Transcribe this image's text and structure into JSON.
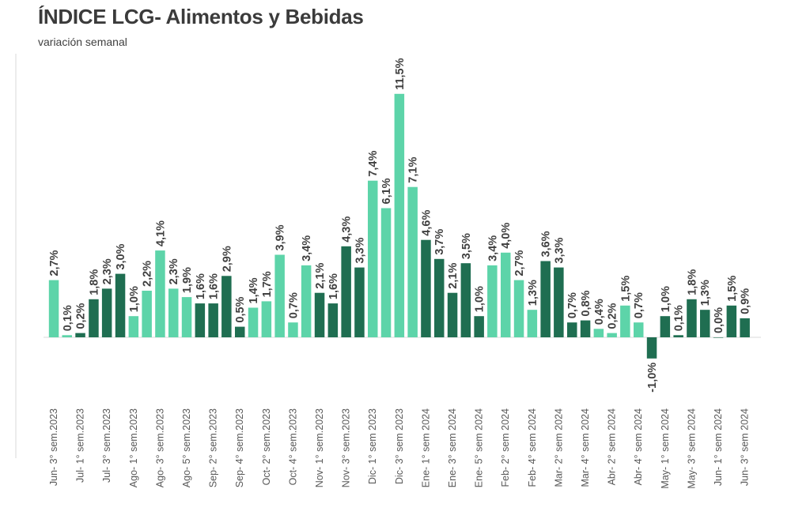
{
  "title": "ÍNDICE LCG- Alimentos y Bebidas",
  "subtitle": "variación semanal",
  "colors": {
    "light": "#5dd4a9",
    "dark": "#1f6e51",
    "axis": "#d9d9d9"
  },
  "chart_data": {
    "type": "bar",
    "title": "ÍNDICE LCG- Alimentos y Bebidas",
    "subtitle": "variación semanal",
    "xlabel": "",
    "ylabel": "",
    "ylim": [
      -1.5,
      12.0
    ],
    "grid": false,
    "categories": [
      "Jun- 3° sem.2023",
      "",
      "Jul- 1° sem.2023",
      "",
      "Jul- 3° sem.2023",
      "",
      "Ago- 1° sem.2023",
      "",
      "Ago- 3° sem.2023",
      "",
      "Ago- 5° sem.2023",
      "",
      "Sep- 2° sem.2023",
      "",
      "Sep- 4° sem.2023",
      "",
      "Oct- 2° sem.2023",
      "",
      "Oct- 4° sem.2023",
      "",
      "Nov- 1° sem.2023",
      "",
      "Nov- 3° sem.2023",
      "",
      "Dic- 1° sem 2023",
      "",
      "Dic- 3° sem 2023",
      "",
      "Ene- 1° sem 2024",
      "",
      "Ene- 3° sem 2024",
      "",
      "Ene- 5° sem 2024",
      "",
      "Feb- 2° sem 2024",
      "",
      "Feb- 4° sem 2024",
      "",
      "Mar- 2° sem 2024",
      "",
      "Mar- 4° sem 2024",
      "",
      "Abr- 2° sem 2024",
      "",
      "Abr- 4° sem 2024",
      "",
      "May- 1° sem 2024",
      "",
      "May- 3° sem 2024",
      "",
      "Jun- 1° sem 2024",
      "",
      "Jun- 3° sem 2024"
    ],
    "values": [
      2.7,
      0.1,
      0.2,
      1.8,
      2.3,
      3.0,
      1.0,
      2.2,
      4.1,
      2.3,
      1.9,
      1.6,
      1.6,
      2.9,
      0.5,
      1.4,
      1.7,
      3.9,
      0.7,
      3.4,
      2.1,
      1.6,
      4.3,
      3.3,
      7.4,
      6.1,
      11.5,
      7.1,
      4.6,
      3.7,
      2.1,
      3.5,
      1.0,
      3.4,
      4.0,
      2.7,
      1.3,
      3.6,
      3.3,
      0.7,
      0.8,
      0.4,
      0.2,
      1.5,
      0.7,
      -1.0,
      1.0,
      0.1,
      1.8,
      1.3,
      0.0,
      1.5,
      0.9
    ],
    "labels": [
      "2,7%",
      "0,1%",
      "0,2%",
      "1,8%",
      "2,3%",
      "3,0%",
      "1,0%",
      "2,2%",
      "4,1%",
      "2,3%",
      "1,9%",
      "1,6%",
      "1,6%",
      "2,9%",
      "0,5%",
      "1,4%",
      "1,7%",
      "3,9%",
      "0,7%",
      "3,4%",
      "2,1%",
      "1,6%",
      "4,3%",
      "3,3%",
      "7,4%",
      "6,1%",
      "11,5%",
      "7,1%",
      "4,6%",
      "3,7%",
      "2,1%",
      "3,5%",
      "1,0%",
      "3,4%",
      "4,0%",
      "2,7%",
      "1,3%",
      "3,6%",
      "3,3%",
      "0,7%",
      "0,8%",
      "0,4%",
      "0,2%",
      "1,5%",
      "0,7%",
      "-1,0%",
      "1,0%",
      "0,1%",
      "1,8%",
      "1,3%",
      "0,0%",
      "1,5%",
      "0,9%"
    ],
    "bar_colors": [
      "light",
      "light",
      "dark",
      "dark",
      "dark",
      "dark",
      "light",
      "light",
      "light",
      "light",
      "light",
      "dark",
      "dark",
      "dark",
      "dark",
      "light",
      "light",
      "light",
      "light",
      "light",
      "dark",
      "dark",
      "dark",
      "dark",
      "light",
      "light",
      "light",
      "light",
      "dark",
      "dark",
      "dark",
      "dark",
      "dark",
      "light",
      "light",
      "light",
      "light",
      "dark",
      "dark",
      "dark",
      "dark",
      "light",
      "light",
      "light",
      "light",
      "dark",
      "dark",
      "dark",
      "dark",
      "dark",
      "dark",
      "dark",
      "dark"
    ]
  }
}
